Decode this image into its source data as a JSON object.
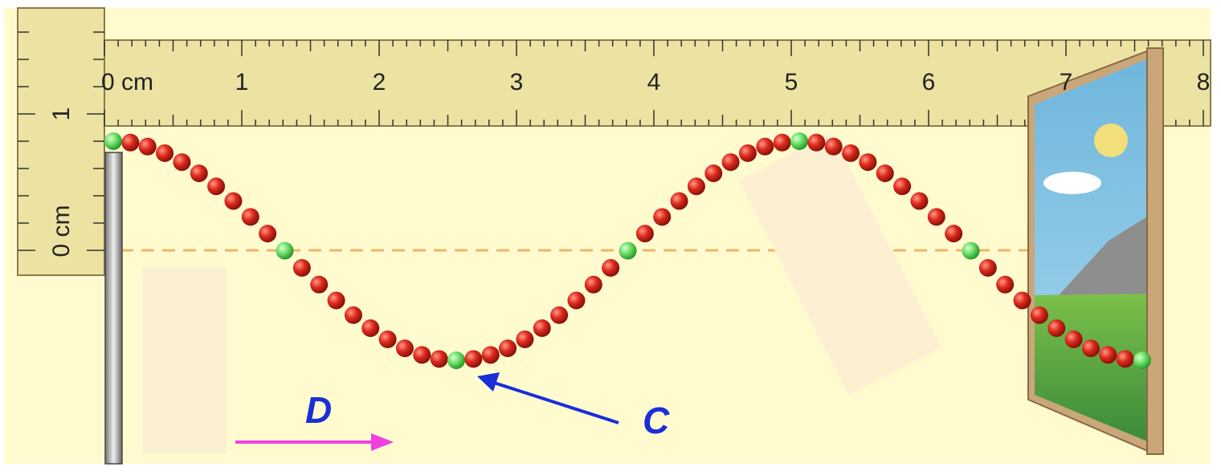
{
  "ruler_horizontal": {
    "labels": [
      "0 cm",
      "1",
      "2",
      "3",
      "4",
      "5",
      "6",
      "7",
      "8"
    ]
  },
  "ruler_vertical": {
    "labels": [
      "0 cm",
      "1"
    ]
  },
  "annotations": {
    "c": "C",
    "d": "D"
  }
}
